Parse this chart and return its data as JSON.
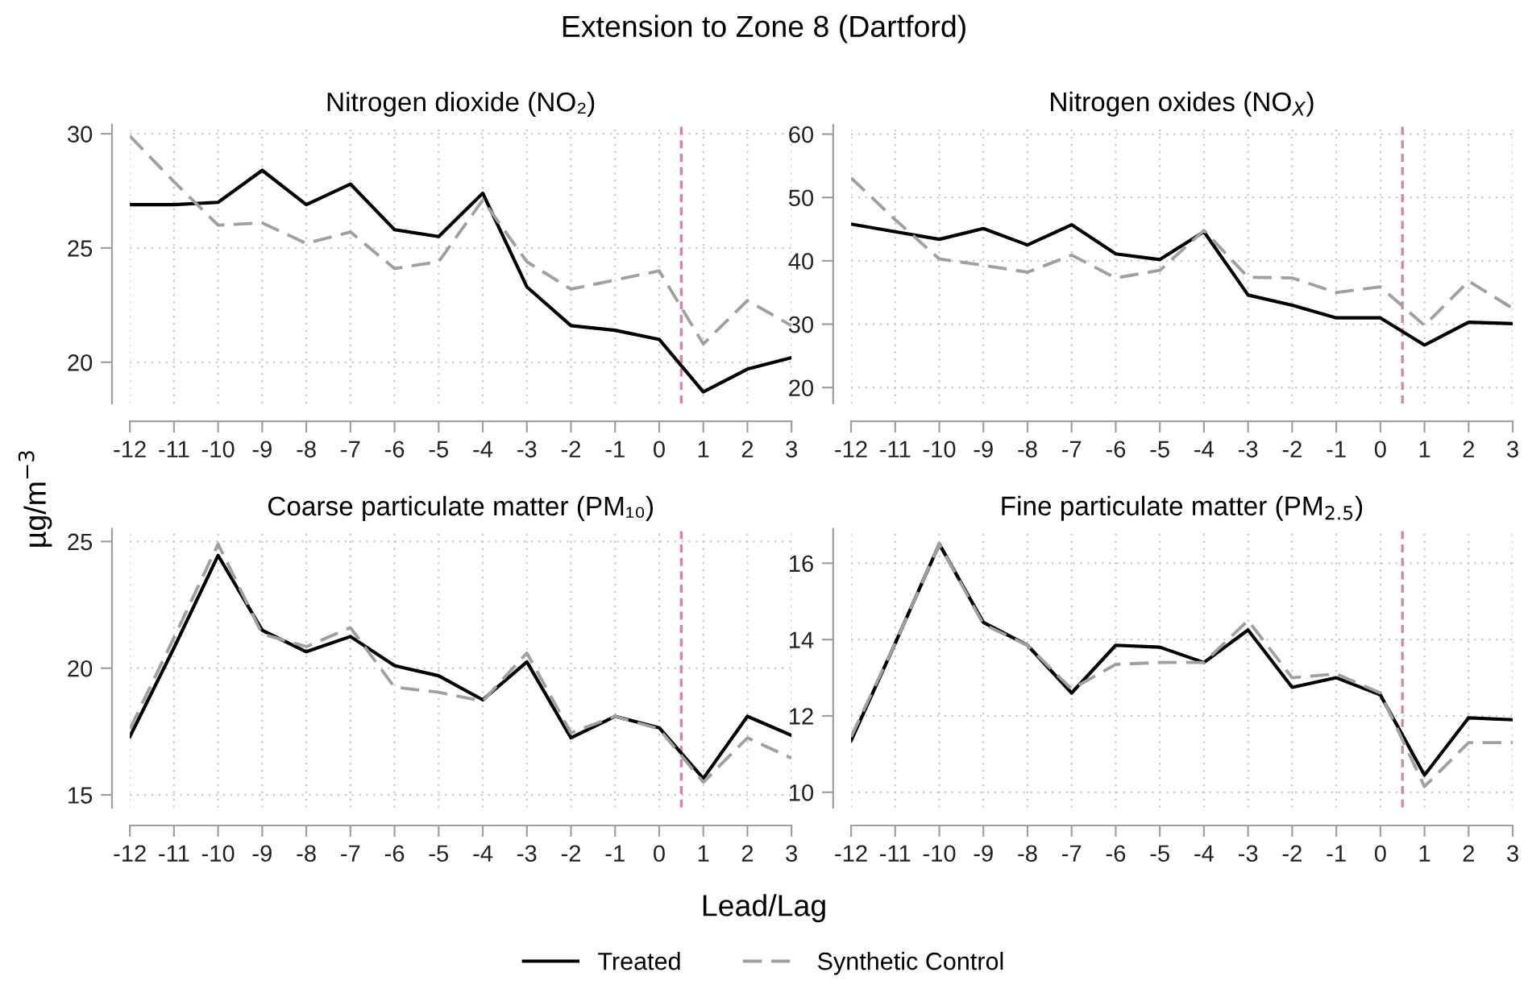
{
  "chart_data": [
    {
      "type": "line",
      "title": "Nitrogen dioxide (NO₂)",
      "annotations": [
        "Extension to Zone 8 (Dartford)"
      ],
      "xlabel": "Lead/Lag",
      "ylabel": "µg/m$^{−3}$",
      "legend": "bottom",
      "grid": true,
      "x": [
        -12,
        -11,
        -10,
        -9,
        -8,
        -7,
        -6,
        -5,
        -4,
        -3,
        -2,
        -1,
        0,
        1,
        2,
        3
      ],
      "xlim": [
        -12,
        3
      ],
      "xticks": [
        -12,
        -11,
        -10,
        -9,
        -8,
        -7,
        -6,
        -5,
        -4,
        -3,
        -2,
        -1,
        0,
        1,
        2,
        3
      ],
      "ylim": [
        18.2,
        30.4
      ],
      "yticks": [
        20,
        25,
        30
      ],
      "ref_lines": [
        {
          "axis": "x",
          "value": 0.5,
          "color": "#d982b0",
          "line_style": "dashed"
        }
      ],
      "series": [
        {
          "name": "Treated",
          "color": "#000000",
          "line_style": "solid",
          "values": [
            26.9,
            26.9,
            27.0,
            28.4,
            26.9,
            27.8,
            25.8,
            25.5,
            27.4,
            23.3,
            21.6,
            21.4,
            21.0,
            18.7,
            19.7,
            20.2
          ]
        },
        {
          "name": "Synthetic Control",
          "color": "#a0a0a0",
          "line_style": "dashed",
          "values": [
            29.9,
            27.9,
            26.0,
            26.1,
            25.2,
            25.7,
            24.1,
            24.4,
            27.1,
            24.4,
            23.2,
            23.6,
            24.0,
            20.8,
            22.7,
            21.6
          ]
        }
      ]
    },
    {
      "type": "line",
      "title": "Nitrogen oxides (NO$_{X}$)",
      "grid": true,
      "x": [
        -12,
        -11,
        -10,
        -9,
        -8,
        -7,
        -6,
        -5,
        -4,
        -3,
        -2,
        -1,
        0,
        1,
        2,
        3
      ],
      "xlim": [
        -12,
        3
      ],
      "xticks": [
        -12,
        -11,
        -10,
        -9,
        -8,
        -7,
        -6,
        -5,
        -4,
        -3,
        -2,
        -1,
        0,
        1,
        2,
        3
      ],
      "ylim": [
        17.5,
        61.5
      ],
      "yticks": [
        20,
        30,
        40,
        50,
        60
      ],
      "ref_lines": [
        {
          "axis": "x",
          "value": 0.5,
          "color": "#d982b0",
          "line_style": "dashed"
        }
      ],
      "series": [
        {
          "color": "#000000",
          "line_style": "solid",
          "values": [
            45.8,
            44.6,
            43.4,
            45.1,
            42.5,
            45.7,
            41.1,
            40.2,
            44.6,
            34.6,
            33.0,
            31.0,
            31.0,
            26.7,
            30.3,
            30.1
          ]
        },
        {
          "color": "#a0a0a0",
          "line_style": "dashed",
          "values": [
            53.1,
            46.5,
            40.3,
            39.3,
            38.2,
            40.9,
            37.3,
            38.5,
            44.8,
            37.4,
            37.3,
            35.0,
            35.9,
            29.8,
            36.8,
            32.5
          ]
        }
      ]
    },
    {
      "type": "line",
      "title": "Coarse particulate matter (PM₁₀)",
      "grid": true,
      "x": [
        -12,
        -11,
        -10,
        -9,
        -8,
        -7,
        -6,
        -5,
        -4,
        -3,
        -2,
        -1,
        0,
        1,
        2,
        3
      ],
      "xlim": [
        -12,
        3
      ],
      "xticks": [
        -12,
        -11,
        -10,
        -9,
        -8,
        -7,
        -6,
        -5,
        -4,
        -3,
        -2,
        -1,
        0,
        1,
        2,
        3
      ],
      "ylim": [
        14.5,
        25.5
      ],
      "yticks": [
        15,
        20,
        25
      ],
      "ref_lines": [
        {
          "axis": "x",
          "value": 0.5,
          "color": "#d982b0",
          "line_style": "dashed"
        }
      ],
      "series": [
        {
          "color": "#000000",
          "line_style": "solid",
          "values": [
            17.3,
            20.8,
            24.45,
            21.5,
            20.65,
            21.25,
            20.1,
            19.7,
            18.75,
            20.25,
            17.25,
            18.1,
            17.65,
            15.65,
            18.1,
            17.35
          ]
        },
        {
          "color": "#a0a0a0",
          "line_style": "dashed",
          "values": [
            17.6,
            21.2,
            24.9,
            21.35,
            20.85,
            21.6,
            19.25,
            19.05,
            18.7,
            20.6,
            17.45,
            18.1,
            17.6,
            15.5,
            17.25,
            16.45
          ]
        }
      ]
    },
    {
      "type": "line",
      "title": "Fine particulate matter (PM$_{2.5}$)",
      "grid": true,
      "x": [
        -12,
        -11,
        -10,
        -9,
        -8,
        -7,
        -6,
        -5,
        -4,
        -3,
        -2,
        -1,
        0,
        1,
        2,
        3
      ],
      "xlim": [
        -12,
        3
      ],
      "xticks": [
        -12,
        -11,
        -10,
        -9,
        -8,
        -7,
        -6,
        -5,
        -4,
        -3,
        -2,
        -1,
        0,
        1,
        2,
        3
      ],
      "ylim": [
        9.6,
        16.9
      ],
      "yticks": [
        10,
        12,
        14,
        16
      ],
      "ref_lines": [
        {
          "axis": "x",
          "value": 0.5,
          "color": "#d982b0",
          "line_style": "dashed"
        }
      ],
      "series": [
        {
          "color": "#000000",
          "line_style": "solid",
          "values": [
            11.35,
            13.9,
            16.5,
            14.45,
            13.85,
            12.6,
            13.85,
            13.8,
            13.4,
            14.25,
            12.75,
            13.0,
            12.55,
            10.45,
            11.95,
            11.9
          ]
        },
        {
          "color": "#a0a0a0",
          "line_style": "dashed",
          "values": [
            11.45,
            13.9,
            16.5,
            14.4,
            13.85,
            12.7,
            13.35,
            13.4,
            13.4,
            14.5,
            13.0,
            13.1,
            12.6,
            10.15,
            11.3,
            11.3
          ]
        }
      ]
    }
  ]
}
